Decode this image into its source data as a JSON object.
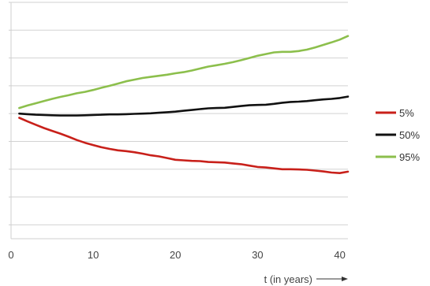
{
  "chart_data": {
    "type": "line",
    "title": "",
    "xlabel": "t (in years)",
    "ylabel": "",
    "xlim": [
      0,
      41
    ],
    "ylim": [
      0,
      8.5
    ],
    "xticks": [
      0,
      10,
      20,
      30,
      40
    ],
    "y_gridlines": [
      0.5,
      1.5,
      2.5,
      3.5,
      4.5,
      5.5,
      6.5,
      7.5,
      8.5
    ],
    "grid": true,
    "legend_position": "right",
    "series": [
      {
        "name": "5%",
        "color": "#c8201a",
        "x": [
          1,
          2,
          3,
          4,
          5,
          6,
          7,
          8,
          9,
          10,
          11,
          12,
          13,
          14,
          15,
          16,
          17,
          18,
          19,
          20,
          21,
          22,
          23,
          24,
          25,
          26,
          27,
          28,
          29,
          30,
          31,
          32,
          33,
          34,
          35,
          36,
          37,
          38,
          39,
          40,
          41
        ],
        "y": [
          4.35,
          4.22,
          4.1,
          3.98,
          3.88,
          3.78,
          3.67,
          3.55,
          3.45,
          3.37,
          3.29,
          3.23,
          3.18,
          3.15,
          3.11,
          3.06,
          3.0,
          2.96,
          2.9,
          2.84,
          2.82,
          2.8,
          2.79,
          2.76,
          2.75,
          2.74,
          2.71,
          2.68,
          2.63,
          2.58,
          2.56,
          2.53,
          2.5,
          2.5,
          2.49,
          2.48,
          2.45,
          2.42,
          2.38,
          2.36,
          2.41
        ]
      },
      {
        "name": "50%",
        "color": "#111111",
        "x": [
          1,
          2,
          3,
          4,
          5,
          6,
          7,
          8,
          9,
          10,
          11,
          12,
          13,
          14,
          15,
          16,
          17,
          18,
          19,
          20,
          21,
          22,
          23,
          24,
          25,
          26,
          27,
          28,
          29,
          30,
          31,
          32,
          33,
          34,
          35,
          36,
          37,
          38,
          39,
          40,
          41
        ],
        "y": [
          4.5,
          4.48,
          4.46,
          4.45,
          4.44,
          4.43,
          4.43,
          4.43,
          4.44,
          4.45,
          4.46,
          4.47,
          4.47,
          4.48,
          4.49,
          4.5,
          4.51,
          4.53,
          4.55,
          4.57,
          4.6,
          4.63,
          4.66,
          4.69,
          4.7,
          4.71,
          4.74,
          4.77,
          4.8,
          4.81,
          4.82,
          4.85,
          4.89,
          4.92,
          4.93,
          4.95,
          4.98,
          5.01,
          5.03,
          5.06,
          5.11
        ]
      },
      {
        "name": "95%",
        "color": "#8cbf4c",
        "x": [
          1,
          2,
          3,
          4,
          5,
          6,
          7,
          8,
          9,
          10,
          11,
          12,
          13,
          14,
          15,
          16,
          17,
          18,
          19,
          20,
          21,
          22,
          23,
          24,
          25,
          26,
          27,
          28,
          29,
          30,
          31,
          32,
          33,
          34,
          35,
          36,
          37,
          38,
          39,
          40,
          41
        ],
        "y": [
          4.7,
          4.79,
          4.87,
          4.95,
          5.03,
          5.1,
          5.16,
          5.23,
          5.28,
          5.35,
          5.43,
          5.5,
          5.58,
          5.66,
          5.72,
          5.78,
          5.82,
          5.86,
          5.9,
          5.95,
          5.99,
          6.05,
          6.12,
          6.19,
          6.24,
          6.29,
          6.35,
          6.42,
          6.5,
          6.58,
          6.64,
          6.7,
          6.72,
          6.72,
          6.75,
          6.8,
          6.88,
          6.97,
          7.06,
          7.16,
          7.29
        ]
      }
    ]
  }
}
